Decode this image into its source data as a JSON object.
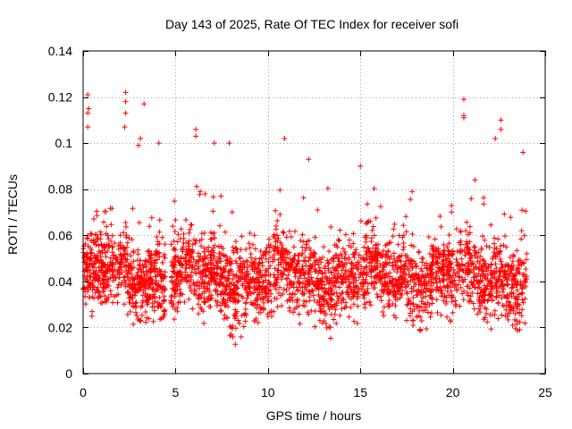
{
  "chart_data": {
    "type": "scatter",
    "title": "Day 143 of 2025, Rate Of TEC Index for receiver sofi",
    "xlabel": "GPS time / hours",
    "ylabel": "ROTI / TECUs",
    "xlim": [
      0,
      25
    ],
    "ylim": [
      0,
      0.14
    ],
    "xticks": [
      0,
      5,
      10,
      15,
      20,
      25
    ],
    "xtick_labels": [
      "0",
      "5",
      "10",
      "15",
      "20",
      "25"
    ],
    "yticks": [
      0,
      0.02,
      0.04,
      0.06,
      0.08,
      0.1,
      0.12,
      0.14
    ],
    "ytick_labels": [
      "0",
      "0.02",
      "0.04",
      "0.06",
      "0.08",
      "0.1",
      "0.12",
      "0.14"
    ],
    "grid": true,
    "marker": "plus",
    "series": [
      {
        "name": "ROTI",
        "color": "#ff0000",
        "x_range": [
          0,
          24
        ],
        "gaps": [
          [
            4.45,
            4.75
          ],
          [
            14.1,
            14.15
          ]
        ],
        "typical_band": [
          0.02,
          0.065
        ],
        "notable_points": [
          [
            0.25,
            0.121
          ],
          [
            0.3,
            0.115
          ],
          [
            0.25,
            0.113
          ],
          [
            0.25,
            0.107
          ],
          [
            2.3,
            0.122
          ],
          [
            2.3,
            0.118
          ],
          [
            2.3,
            0.113
          ],
          [
            2.25,
            0.107
          ],
          [
            3.3,
            0.117
          ],
          [
            3.1,
            0.102
          ],
          [
            3.0,
            0.099
          ],
          [
            4.1,
            0.1
          ],
          [
            6.1,
            0.106
          ],
          [
            6.1,
            0.103
          ],
          [
            7.1,
            0.1
          ],
          [
            7.9,
            0.1
          ],
          [
            10.9,
            0.102
          ],
          [
            12.2,
            0.093
          ],
          [
            15.0,
            0.09
          ],
          [
            20.6,
            0.119
          ],
          [
            20.6,
            0.112
          ],
          [
            20.6,
            0.111
          ],
          [
            22.6,
            0.11
          ],
          [
            22.6,
            0.106
          ],
          [
            22.3,
            0.102
          ],
          [
            23.8,
            0.096
          ]
        ]
      }
    ]
  }
}
